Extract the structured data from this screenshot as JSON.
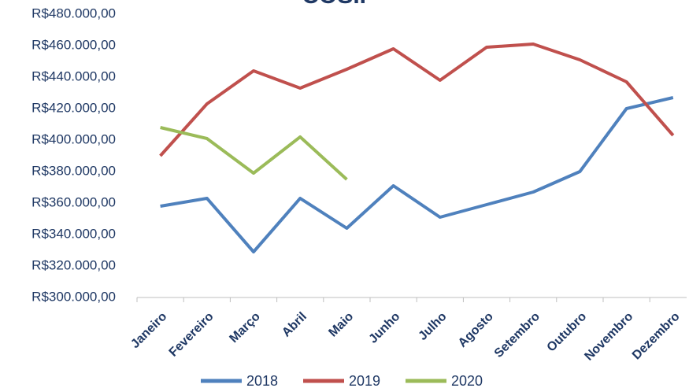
{
  "chart_data": {
    "type": "line",
    "title": "COSIP",
    "categories": [
      "Janeiro",
      "Fevereiro",
      "Março",
      "Abril",
      "Maio",
      "Junho",
      "Julho",
      "Agosto",
      "Setembro",
      "Outubro",
      "Novembro",
      "Dezembro"
    ],
    "series": [
      {
        "name": "2018",
        "color": "#4f81bd",
        "values": [
          358000,
          363000,
          329000,
          363000,
          344000,
          371000,
          351000,
          359000,
          367000,
          380000,
          420000,
          427000
        ]
      },
      {
        "name": "2019",
        "color": "#c0504d",
        "values": [
          390000,
          423000,
          444000,
          433000,
          445000,
          458000,
          438000,
          459000,
          461000,
          451000,
          437000,
          403000
        ]
      },
      {
        "name": "2020",
        "color": "#9bbb59",
        "values": [
          408000,
          401000,
          379000,
          402000,
          375000,
          null,
          null,
          null,
          null,
          null,
          null,
          null
        ]
      }
    ],
    "ylim": [
      300000,
      480000
    ],
    "yticks": [
      {
        "value": 300000,
        "label": "R$300.000,00"
      },
      {
        "value": 320000,
        "label": "R$320.000,00"
      },
      {
        "value": 340000,
        "label": "R$340.000,00"
      },
      {
        "value": 360000,
        "label": "R$360.000,00"
      },
      {
        "value": 380000,
        "label": "R$380.000,00"
      },
      {
        "value": 400000,
        "label": "R$400.000,00"
      },
      {
        "value": 420000,
        "label": "R$420.000,00"
      },
      {
        "value": 440000,
        "label": "R$440.000,00"
      },
      {
        "value": 460000,
        "label": "R$460.000,00"
      },
      {
        "value": 480000,
        "label": "R$480.000,00"
      }
    ],
    "grid": false,
    "legend": "bottom"
  }
}
